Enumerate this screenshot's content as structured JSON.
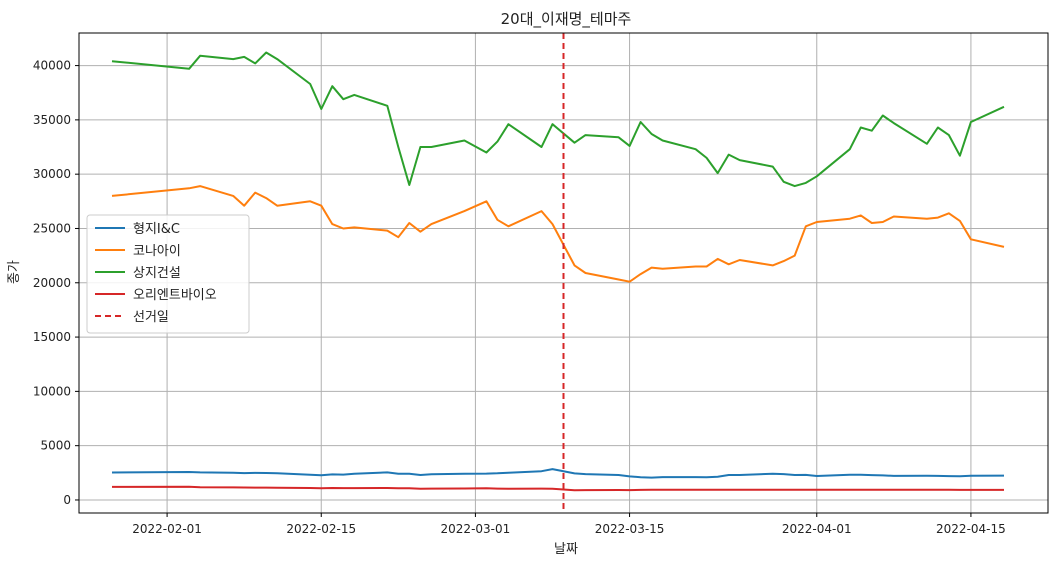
{
  "chart_data": {
    "type": "line",
    "title": "20대_이재명_테마주",
    "xlabel": "날짜",
    "ylabel": "종가",
    "x_range": [
      "2022-01-24",
      "2022-04-22"
    ],
    "ylim": [
      -1200,
      43000
    ],
    "x_ticks": [
      {
        "date": "2022-02-01",
        "label": "2022-02-01"
      },
      {
        "date": "2022-02-15",
        "label": "2022-02-15"
      },
      {
        "date": "2022-03-01",
        "label": "2022-03-01"
      },
      {
        "date": "2022-03-15",
        "label": "2022-03-15"
      },
      {
        "date": "2022-04-01",
        "label": "2022-04-01"
      },
      {
        "date": "2022-04-15",
        "label": "2022-04-15"
      }
    ],
    "y_ticks": [
      0,
      5000,
      10000,
      15000,
      20000,
      25000,
      30000,
      35000,
      40000
    ],
    "grid": true,
    "legend_position": "center-left",
    "election_line": {
      "name": "선거일",
      "date": "2022-03-09",
      "color": "#d62728"
    },
    "series": [
      {
        "name": "형지I&C",
        "color": "#1f77b4",
        "points": [
          [
            "2022-01-27",
            2530
          ],
          [
            "2022-02-03",
            2580
          ],
          [
            "2022-02-04",
            2540
          ],
          [
            "2022-02-07",
            2500
          ],
          [
            "2022-02-08",
            2470
          ],
          [
            "2022-02-09",
            2490
          ],
          [
            "2022-02-10",
            2480
          ],
          [
            "2022-02-11",
            2460
          ],
          [
            "2022-02-14",
            2330
          ],
          [
            "2022-02-15",
            2270
          ],
          [
            "2022-02-16",
            2350
          ],
          [
            "2022-02-17",
            2340
          ],
          [
            "2022-02-18",
            2420
          ],
          [
            "2022-02-21",
            2540
          ],
          [
            "2022-02-22",
            2420
          ],
          [
            "2022-02-23",
            2410
          ],
          [
            "2022-02-24",
            2300
          ],
          [
            "2022-02-25",
            2360
          ],
          [
            "2022-02-28",
            2420
          ],
          [
            "2022-03-02",
            2430
          ],
          [
            "2022-03-03",
            2460
          ],
          [
            "2022-03-04",
            2510
          ],
          [
            "2022-03-07",
            2650
          ],
          [
            "2022-03-08",
            2840
          ],
          [
            "2022-03-10",
            2450
          ],
          [
            "2022-03-11",
            2380
          ],
          [
            "2022-03-14",
            2300
          ],
          [
            "2022-03-15",
            2170
          ],
          [
            "2022-03-16",
            2100
          ],
          [
            "2022-03-17",
            2060
          ],
          [
            "2022-03-18",
            2110
          ],
          [
            "2022-03-21",
            2110
          ],
          [
            "2022-03-22",
            2100
          ],
          [
            "2022-03-23",
            2140
          ],
          [
            "2022-03-24",
            2300
          ],
          [
            "2022-03-25",
            2300
          ],
          [
            "2022-03-28",
            2420
          ],
          [
            "2022-03-29",
            2380
          ],
          [
            "2022-03-30",
            2300
          ],
          [
            "2022-03-31",
            2310
          ],
          [
            "2022-04-01",
            2210
          ],
          [
            "2022-04-04",
            2320
          ],
          [
            "2022-04-05",
            2330
          ],
          [
            "2022-04-06",
            2290
          ],
          [
            "2022-04-07",
            2260
          ],
          [
            "2022-04-08",
            2220
          ],
          [
            "2022-04-11",
            2230
          ],
          [
            "2022-04-12",
            2220
          ],
          [
            "2022-04-13",
            2200
          ],
          [
            "2022-04-14",
            2180
          ],
          [
            "2022-04-15",
            2230
          ],
          [
            "2022-04-18",
            2240
          ]
        ]
      },
      {
        "name": "코나아이",
        "color": "#ff7f0e",
        "points": [
          [
            "2022-01-27",
            28000
          ],
          [
            "2022-02-03",
            28700
          ],
          [
            "2022-02-04",
            28900
          ],
          [
            "2022-02-07",
            28000
          ],
          [
            "2022-02-08",
            27100
          ],
          [
            "2022-02-09",
            28300
          ],
          [
            "2022-02-10",
            27800
          ],
          [
            "2022-02-11",
            27100
          ],
          [
            "2022-02-14",
            27500
          ],
          [
            "2022-02-15",
            27100
          ],
          [
            "2022-02-16",
            25400
          ],
          [
            "2022-02-17",
            25000
          ],
          [
            "2022-02-18",
            25100
          ],
          [
            "2022-02-21",
            24800
          ],
          [
            "2022-02-22",
            24200
          ],
          [
            "2022-02-23",
            25500
          ],
          [
            "2022-02-24",
            24700
          ],
          [
            "2022-02-25",
            25400
          ],
          [
            "2022-02-28",
            26600
          ],
          [
            "2022-03-02",
            27500
          ],
          [
            "2022-03-03",
            25800
          ],
          [
            "2022-03-04",
            25200
          ],
          [
            "2022-03-07",
            26600
          ],
          [
            "2022-03-08",
            25400
          ],
          [
            "2022-03-10",
            21600
          ],
          [
            "2022-03-11",
            20900
          ],
          [
            "2022-03-14",
            20300
          ],
          [
            "2022-03-15",
            20100
          ],
          [
            "2022-03-16",
            20800
          ],
          [
            "2022-03-17",
            21400
          ],
          [
            "2022-03-18",
            21300
          ],
          [
            "2022-03-21",
            21500
          ],
          [
            "2022-03-22",
            21500
          ],
          [
            "2022-03-23",
            22200
          ],
          [
            "2022-03-24",
            21700
          ],
          [
            "2022-03-25",
            22100
          ],
          [
            "2022-03-28",
            21600
          ],
          [
            "2022-03-29",
            22000
          ],
          [
            "2022-03-30",
            22500
          ],
          [
            "2022-03-31",
            25200
          ],
          [
            "2022-04-01",
            25600
          ],
          [
            "2022-04-04",
            25900
          ],
          [
            "2022-04-05",
            26200
          ],
          [
            "2022-04-06",
            25500
          ],
          [
            "2022-04-07",
            25600
          ],
          [
            "2022-04-08",
            26100
          ],
          [
            "2022-04-11",
            25900
          ],
          [
            "2022-04-12",
            26000
          ],
          [
            "2022-04-13",
            26400
          ],
          [
            "2022-04-14",
            25700
          ],
          [
            "2022-04-15",
            24000
          ],
          [
            "2022-04-18",
            23300
          ]
        ]
      },
      {
        "name": "상지건설",
        "color": "#2ca02c",
        "points": [
          [
            "2022-01-27",
            40400
          ],
          [
            "2022-02-03",
            39700
          ],
          [
            "2022-02-04",
            40900
          ],
          [
            "2022-02-07",
            40600
          ],
          [
            "2022-02-08",
            40800
          ],
          [
            "2022-02-09",
            40200
          ],
          [
            "2022-02-10",
            41200
          ],
          [
            "2022-02-11",
            40600
          ],
          [
            "2022-02-14",
            38300
          ],
          [
            "2022-02-15",
            36000
          ],
          [
            "2022-02-16",
            38100
          ],
          [
            "2022-02-17",
            36900
          ],
          [
            "2022-02-18",
            37300
          ],
          [
            "2022-02-21",
            36300
          ],
          [
            "2022-02-22",
            32500
          ],
          [
            "2022-02-23",
            29000
          ],
          [
            "2022-02-24",
            32500
          ],
          [
            "2022-02-25",
            32500
          ],
          [
            "2022-02-28",
            33100
          ],
          [
            "2022-03-02",
            32000
          ],
          [
            "2022-03-03",
            33000
          ],
          [
            "2022-03-04",
            34600
          ],
          [
            "2022-03-07",
            32500
          ],
          [
            "2022-03-08",
            34600
          ],
          [
            "2022-03-10",
            32900
          ],
          [
            "2022-03-11",
            33600
          ],
          [
            "2022-03-14",
            33400
          ],
          [
            "2022-03-15",
            32600
          ],
          [
            "2022-03-16",
            34800
          ],
          [
            "2022-03-17",
            33700
          ],
          [
            "2022-03-18",
            33100
          ],
          [
            "2022-03-21",
            32300
          ],
          [
            "2022-03-22",
            31500
          ],
          [
            "2022-03-23",
            30100
          ],
          [
            "2022-03-24",
            31800
          ],
          [
            "2022-03-25",
            31300
          ],
          [
            "2022-03-28",
            30700
          ],
          [
            "2022-03-29",
            29300
          ],
          [
            "2022-03-30",
            28900
          ],
          [
            "2022-03-31",
            29200
          ],
          [
            "2022-04-01",
            29800
          ],
          [
            "2022-04-04",
            32300
          ],
          [
            "2022-04-05",
            34300
          ],
          [
            "2022-04-06",
            34000
          ],
          [
            "2022-04-07",
            35400
          ],
          [
            "2022-04-08",
            34700
          ],
          [
            "2022-04-11",
            32800
          ],
          [
            "2022-04-12",
            34300
          ],
          [
            "2022-04-13",
            33600
          ],
          [
            "2022-04-14",
            31700
          ],
          [
            "2022-04-15",
            34800
          ],
          [
            "2022-04-18",
            36200
          ]
        ]
      },
      {
        "name": "오리엔트바이오",
        "color": "#d62728",
        "points": [
          [
            "2022-01-27",
            1200
          ],
          [
            "2022-02-03",
            1220
          ],
          [
            "2022-02-04",
            1180
          ],
          [
            "2022-02-07",
            1160
          ],
          [
            "2022-02-08",
            1150
          ],
          [
            "2022-02-09",
            1140
          ],
          [
            "2022-02-10",
            1140
          ],
          [
            "2022-02-11",
            1130
          ],
          [
            "2022-02-14",
            1100
          ],
          [
            "2022-02-15",
            1080
          ],
          [
            "2022-02-16",
            1100
          ],
          [
            "2022-02-17",
            1090
          ],
          [
            "2022-02-18",
            1090
          ],
          [
            "2022-02-21",
            1100
          ],
          [
            "2022-02-22",
            1080
          ],
          [
            "2022-02-23",
            1070
          ],
          [
            "2022-02-24",
            1040
          ],
          [
            "2022-02-25",
            1050
          ],
          [
            "2022-02-28",
            1060
          ],
          [
            "2022-03-02",
            1070
          ],
          [
            "2022-03-03",
            1050
          ],
          [
            "2022-03-04",
            1040
          ],
          [
            "2022-03-07",
            1050
          ],
          [
            "2022-03-08",
            1040
          ],
          [
            "2022-03-10",
            900
          ],
          [
            "2022-03-11",
            910
          ],
          [
            "2022-03-14",
            920
          ],
          [
            "2022-03-15",
            910
          ],
          [
            "2022-03-16",
            930
          ],
          [
            "2022-03-17",
            940
          ],
          [
            "2022-03-18",
            940
          ],
          [
            "2022-03-21",
            940
          ],
          [
            "2022-03-22",
            940
          ],
          [
            "2022-03-23",
            950
          ],
          [
            "2022-03-24",
            950
          ],
          [
            "2022-03-25",
            950
          ],
          [
            "2022-03-28",
            940
          ],
          [
            "2022-03-29",
            940
          ],
          [
            "2022-03-30",
            950
          ],
          [
            "2022-03-31",
            950
          ],
          [
            "2022-04-01",
            950
          ],
          [
            "2022-04-04",
            950
          ],
          [
            "2022-04-05",
            950
          ],
          [
            "2022-04-06",
            950
          ],
          [
            "2022-04-07",
            940
          ],
          [
            "2022-04-08",
            940
          ],
          [
            "2022-04-11",
            940
          ],
          [
            "2022-04-12",
            940
          ],
          [
            "2022-04-13",
            940
          ],
          [
            "2022-04-14",
            930
          ],
          [
            "2022-04-15",
            930
          ],
          [
            "2022-04-18",
            930
          ]
        ]
      }
    ]
  }
}
